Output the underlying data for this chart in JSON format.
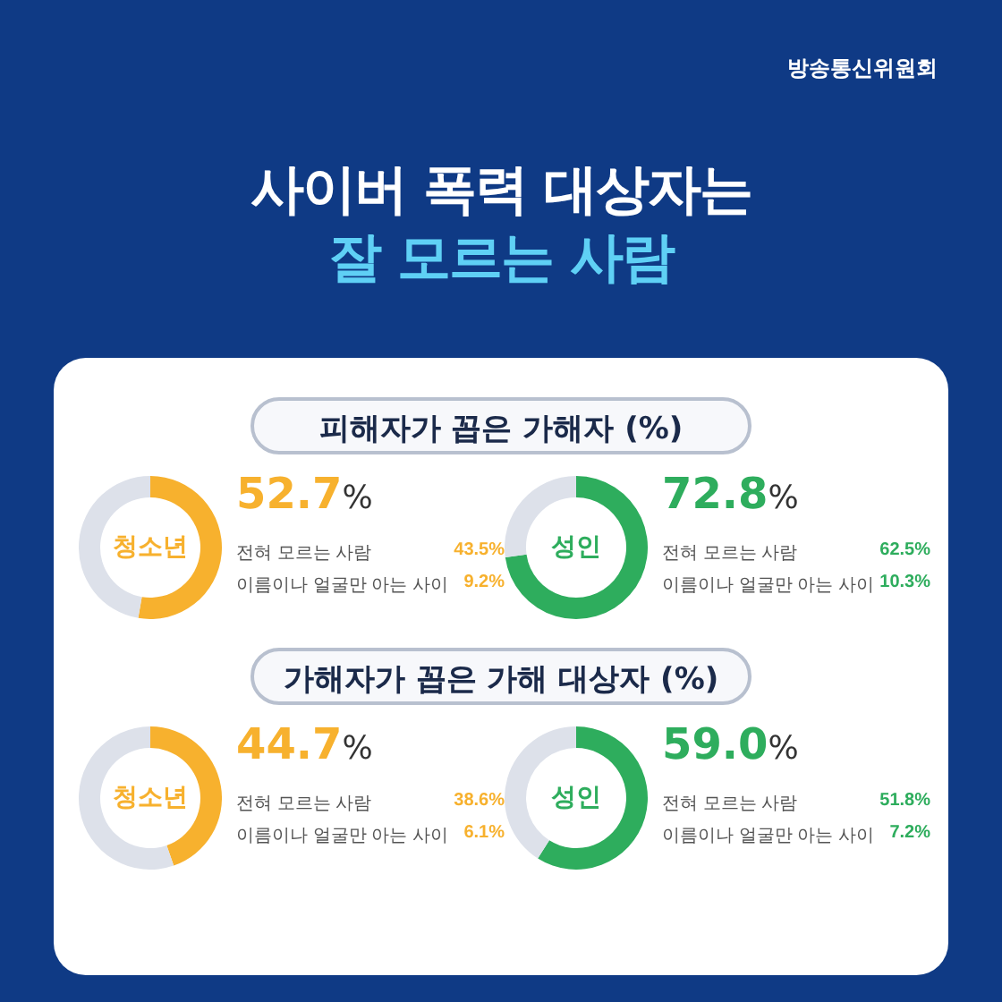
{
  "chart_data": [
    {
      "type": "other",
      "title": "사이버 폭력 대상자는",
      "subtitle": "잘 모르는 사람",
      "annotations": [
        "방송통신위원회"
      ]
    },
    {
      "type": "donut",
      "subtitle": "피해자가 꼽은 가해자 (%)",
      "title": "청소년",
      "categories": [
        null,
        null
      ],
      "values": [
        52.7,
        47.3
      ],
      "colors": [
        "#f7b12e",
        "#dde1ea"
      ],
      "value_labels": [
        "52.7%",
        null
      ],
      "annotations": [
        "전혀 모르는 사람",
        "43.5%",
        "이름이나 얼굴만 아는 사이",
        "9.2%"
      ],
      "legend": false
    },
    {
      "type": "donut",
      "title": "성인",
      "categories": [
        null,
        null
      ],
      "values": [
        72.8,
        27.2
      ],
      "colors": [
        "#2ead5d",
        "#dde1ea"
      ],
      "value_labels": [
        "72.8%",
        null
      ],
      "annotations": [
        "전혀 모르는 사람",
        "62.5%",
        "이름이나 얼굴만 아는 사이",
        "10.3%"
      ],
      "legend": false
    },
    {
      "type": "donut",
      "subtitle": "가해자가 꼽은 가해 대상자 (%)",
      "title": "청소년",
      "categories": [
        null,
        null
      ],
      "values": [
        44.7,
        55.3
      ],
      "colors": [
        "#f7b12e",
        "#dde1ea"
      ],
      "value_labels": [
        "44.7%",
        null
      ],
      "annotations": [
        "전혀 모르는 사람",
        "38.6%",
        "이름이나 얼굴만 아는 사이",
        "6.1%"
      ],
      "legend": false
    },
    {
      "type": "donut",
      "title": "성인",
      "categories": [
        null,
        null
      ],
      "values": [
        59.0,
        41.0
      ],
      "colors": [
        "#2ead5d",
        "#dde1ea"
      ],
      "value_labels": [
        "59.0%",
        null
      ],
      "annotations": [
        "전혀 모르는 사람",
        "51.8%",
        "이름이나 얼굴만 아는 사이",
        "7.2%"
      ],
      "legend": false
    }
  ]
}
